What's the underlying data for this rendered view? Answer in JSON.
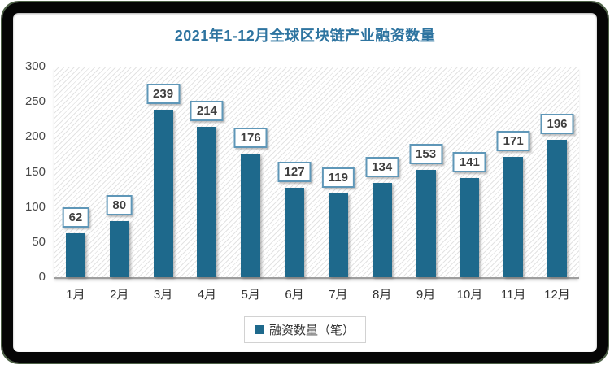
{
  "chart_data": {
    "type": "bar",
    "title": "2021年1-12月全球区块链产业融资数量",
    "categories": [
      "1月",
      "2月",
      "3月",
      "4月",
      "5月",
      "6月",
      "7月",
      "8月",
      "9月",
      "10月",
      "11月",
      "12月"
    ],
    "values": [
      62,
      80,
      239,
      214,
      176,
      127,
      119,
      134,
      153,
      141,
      171,
      196
    ],
    "ylabel": "",
    "xlabel": "",
    "ylim": [
      0,
      300
    ],
    "yticks": [
      0,
      50,
      100,
      150,
      200,
      250,
      300
    ],
    "grid": false,
    "legend_position": "bottom",
    "legend": [
      "融资数量（笔）"
    ],
    "bar_color": "#1E698C",
    "title_color": "#2E74A0",
    "background_pattern": "diagonal-hatch"
  },
  "legend": {
    "label": "融资数量（笔）"
  }
}
